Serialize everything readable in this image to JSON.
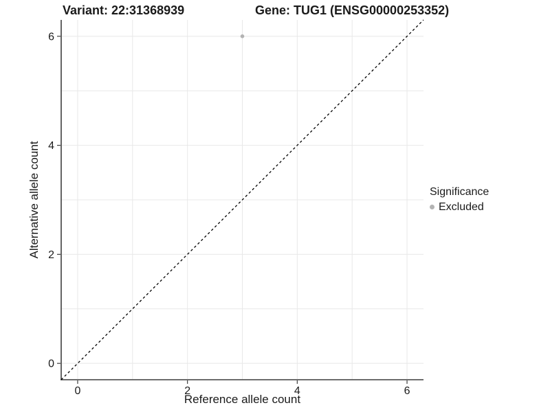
{
  "header": {
    "variant_title": "Variant: 22:31368939",
    "gene_title": "Gene: TUG1 (ENSG00000253352)"
  },
  "chart_data": {
    "type": "scatter",
    "xlabel": "Reference allele count",
    "ylabel": "Alternative allele count",
    "xlim": [
      -0.3,
      6.3
    ],
    "ylim": [
      -0.3,
      6.3
    ],
    "xticks": [
      0,
      2,
      4,
      6
    ],
    "yticks": [
      0,
      2,
      4,
      6
    ],
    "xgrid": [
      0,
      1,
      2,
      3,
      4,
      5,
      6
    ],
    "ygrid": [
      0,
      1,
      2,
      3,
      4,
      5,
      6
    ],
    "grid": true,
    "points": [
      {
        "x": 3,
        "y": 6,
        "significance": "Excluded"
      }
    ],
    "identity_line": {
      "slope": 1,
      "intercept": 0,
      "style": "dashed",
      "color": "#000000"
    },
    "legend": {
      "title": "Significance",
      "position": "right",
      "entries": [
        {
          "label": "Excluded",
          "color": "#b3b3b3"
        }
      ]
    },
    "colors": {
      "point": "#b3b3b3",
      "gridline": "#e8e8e8",
      "axis_line": "#3c3c3c",
      "text": "#1a1a1a"
    }
  }
}
